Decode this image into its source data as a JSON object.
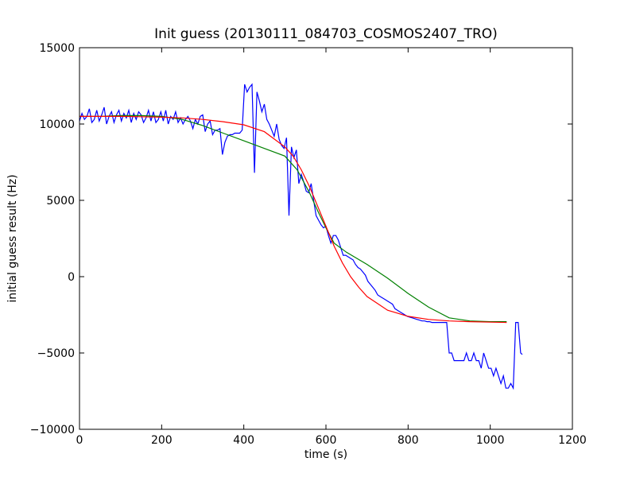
{
  "chart_data": {
    "type": "line",
    "title": "Init guess (20130111_084703_COSMOS2407_TRO)",
    "xlabel": "time (s)",
    "ylabel": "initial guess result (Hz)",
    "xlim": [
      0,
      1200
    ],
    "ylim": [
      -10000,
      15000
    ],
    "xticks": [
      0,
      200,
      400,
      600,
      800,
      1000,
      1200
    ],
    "yticks": [
      -10000,
      -5000,
      0,
      5000,
      10000,
      15000
    ],
    "grid": false,
    "legend": "none",
    "series": [
      {
        "color": "#0000ff",
        "x": [
          0,
          6,
          12,
          18,
          24,
          30,
          36,
          42,
          48,
          54,
          60,
          66,
          72,
          78,
          84,
          90,
          96,
          102,
          108,
          114,
          120,
          126,
          132,
          138,
          144,
          150,
          156,
          162,
          168,
          174,
          180,
          186,
          192,
          198,
          204,
          210,
          216,
          222,
          228,
          234,
          240,
          246,
          252,
          258,
          264,
          270,
          276,
          282,
          288,
          294,
          300,
          306,
          312,
          318,
          324,
          330,
          336,
          342,
          348,
          354,
          360,
          366,
          372,
          378,
          384,
          390,
          396,
          402,
          408,
          414,
          420,
          426,
          432,
          438,
          444,
          450,
          456,
          462,
          468,
          474,
          480,
          486,
          492,
          498,
          504,
          510,
          516,
          522,
          528,
          534,
          540,
          546,
          552,
          558,
          564,
          570,
          576,
          582,
          588,
          594,
          600,
          606,
          612,
          618,
          624,
          630,
          636,
          642,
          648,
          654,
          660,
          666,
          672,
          678,
          684,
          690,
          696,
          702,
          708,
          714,
          720,
          726,
          732,
          738,
          744,
          750,
          756,
          762,
          768,
          774,
          780,
          786,
          792,
          798,
          804,
          810,
          816,
          822,
          828,
          834,
          840,
          846,
          852,
          858,
          864,
          870,
          876,
          882,
          888,
          894,
          900,
          906,
          912,
          918,
          924,
          930,
          936,
          942,
          948,
          954,
          960,
          966,
          972,
          978,
          984,
          990,
          996,
          1002,
          1008,
          1014,
          1020,
          1026,
          1032,
          1038,
          1044,
          1050,
          1056,
          1062,
          1068,
          1074,
          1078
        ],
        "y": [
          10200,
          10700,
          10300,
          10500,
          11000,
          10100,
          10300,
          10900,
          10200,
          10600,
          11100,
          10000,
          10500,
          10800,
          10100,
          10600,
          10900,
          10200,
          10700,
          10400,
          10900,
          10100,
          10700,
          10300,
          10800,
          10600,
          10100,
          10400,
          10900,
          10200,
          10800,
          10100,
          10300,
          10800,
          10200,
          10900,
          10000,
          10500,
          10300,
          10800,
          10100,
          10400,
          10000,
          10300,
          10500,
          10200,
          9700,
          10300,
          10000,
          10500,
          10600,
          9500,
          10000,
          10200,
          9300,
          9600,
          9600,
          9700,
          8000,
          8800,
          9200,
          9300,
          9300,
          9400,
          9400,
          9400,
          9600,
          12600,
          12100,
          12400,
          12600,
          6800,
          12100,
          11500,
          10800,
          11300,
          10300,
          10000,
          9600,
          9200,
          10000,
          9000,
          8600,
          8400,
          9100,
          4000,
          8500,
          7800,
          8300,
          6100,
          6700,
          6200,
          5600,
          5500,
          6100,
          5000,
          4000,
          3700,
          3400,
          3200,
          3300,
          2700,
          2200,
          2700,
          2700,
          2400,
          1900,
          1400,
          1400,
          1300,
          1200,
          1100,
          800,
          600,
          500,
          300,
          100,
          -300,
          -500,
          -700,
          -900,
          -1200,
          -1300,
          -1400,
          -1500,
          -1600,
          -1700,
          -1800,
          -2100,
          -2200,
          -2300,
          -2400,
          -2500,
          -2600,
          -2650,
          -2700,
          -2750,
          -2800,
          -2850,
          -2900,
          -2900,
          -2950,
          -2950,
          -3000,
          -3000,
          -3000,
          -3000,
          -3000,
          -3000,
          -3000,
          -5000,
          -5000,
          -5500,
          -5500,
          -5500,
          -5500,
          -5500,
          -5000,
          -5500,
          -5500,
          -5000,
          -5500,
          -5500,
          -6000,
          -5000,
          -5500,
          -6000,
          -6000,
          -6500,
          -6000,
          -6500,
          -7000,
          -6500,
          -7300,
          -7300,
          -7000,
          -7300,
          -3000,
          -3000,
          -5000,
          -5100
        ],
        "z_note_unused": null
      },
      {
        "color": "#008000",
        "x": [
          0,
          50,
          100,
          150,
          200,
          250,
          300,
          350,
          400,
          450,
          500,
          530,
          560,
          580,
          600,
          620,
          650,
          700,
          750,
          800,
          850,
          900,
          950,
          1000,
          1040
        ],
        "y": [
          10500,
          10500,
          10550,
          10550,
          10500,
          10300,
          9900,
          9400,
          8900,
          8400,
          7900,
          7000,
          5500,
          4300,
          3200,
          2200,
          1600,
          800,
          -100,
          -1100,
          -2000,
          -2700,
          -2900,
          -2950,
          -2950
        ]
      },
      {
        "color": "#ff0000",
        "x": [
          0,
          50,
          100,
          150,
          200,
          250,
          300,
          350,
          400,
          450,
          500,
          520,
          540,
          560,
          580,
          600,
          620,
          640,
          660,
          680,
          700,
          750,
          800,
          850,
          900,
          950,
          1000,
          1040
        ],
        "y": [
          10500,
          10500,
          10500,
          10480,
          10450,
          10400,
          10300,
          10150,
          9950,
          9500,
          8500,
          7900,
          7000,
          5900,
          4600,
          3300,
          2000,
          900,
          0,
          -700,
          -1300,
          -2200,
          -2600,
          -2800,
          -2900,
          -2950,
          -2980,
          -3000
        ]
      }
    ]
  }
}
